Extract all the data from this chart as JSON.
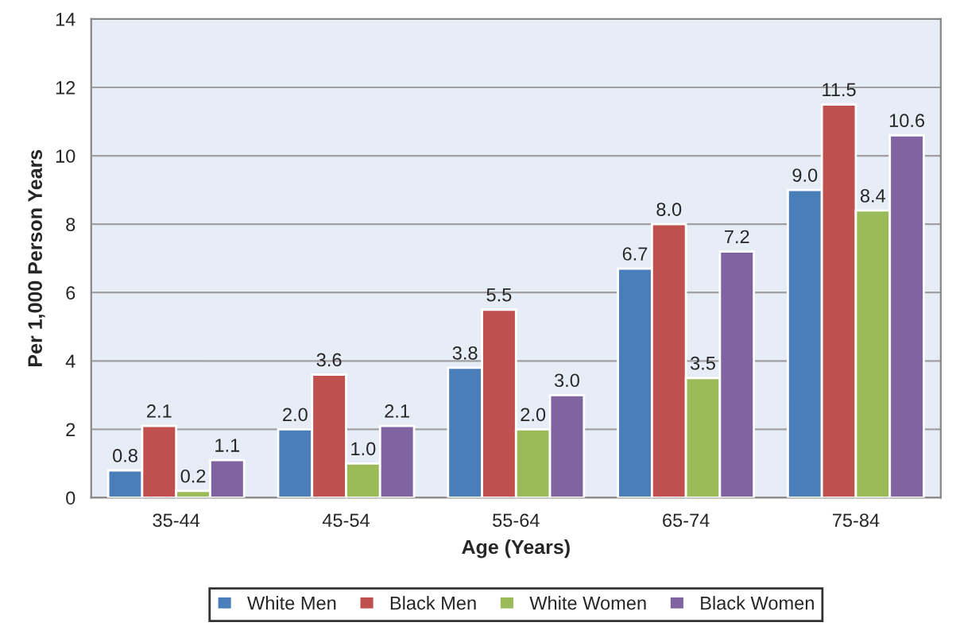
{
  "chart_data": {
    "type": "bar",
    "xlabel": "Age (Years)",
    "ylabel": "Per 1,000 Person Years",
    "categories": [
      "35-44",
      "45-54",
      "55-64",
      "65-74",
      "75-84"
    ],
    "series": [
      {
        "name": "White Men",
        "color": "#4a7ebb",
        "values": [
          0.8,
          2.0,
          3.8,
          6.7,
          9.0
        ]
      },
      {
        "name": "Black Men",
        "color": "#c0504d",
        "values": [
          2.1,
          3.6,
          5.5,
          8.0,
          11.5
        ]
      },
      {
        "name": "White Women",
        "color": "#9bbb59",
        "values": [
          0.2,
          1.0,
          2.0,
          3.5,
          8.4
        ]
      },
      {
        "name": "Black Women",
        "color": "#8064a2",
        "values": [
          1.1,
          2.1,
          3.0,
          7.2,
          10.6
        ]
      }
    ],
    "value_labels": [
      [
        "0.8",
        "2.0",
        "3.8",
        "6.7",
        "9.0"
      ],
      [
        "2.1",
        "3.6",
        "5.5",
        "8.0",
        "11.5"
      ],
      [
        "0.2",
        "1.0",
        "2.0",
        "3.5",
        "8.4"
      ],
      [
        "1.1",
        "2.1",
        "3.0",
        "7.2",
        "10.6"
      ]
    ],
    "ylim": [
      0,
      14
    ],
    "yticks": [
      0,
      2,
      4,
      6,
      8,
      10,
      12,
      14
    ],
    "grid": "y",
    "legend": "bottom"
  }
}
